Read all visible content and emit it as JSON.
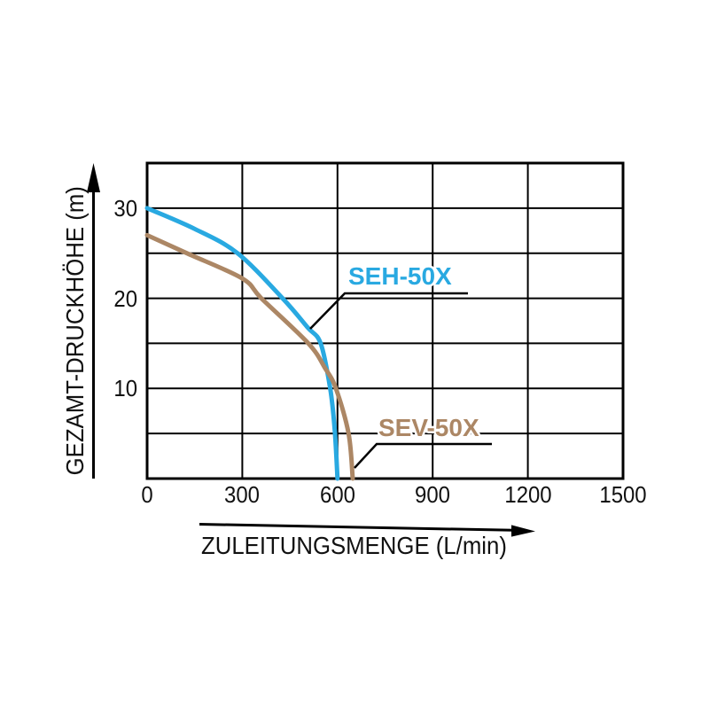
{
  "chart_data": {
    "type": "line",
    "title": "",
    "xlabel": "ZULEITUNGSMENGE (L/min)",
    "ylabel": "GEZAMT-DRUCKHÖHE (m)",
    "xlim": [
      0,
      1500
    ],
    "ylim": [
      0,
      35
    ],
    "x_ticks": [
      "0",
      "300",
      "600",
      "900",
      "1200",
      "1500"
    ],
    "y_ticks": [
      "10",
      "20",
      "30"
    ],
    "grid": "on",
    "grid_x_step": 300,
    "grid_y_step": 5,
    "axis_color": "#000000",
    "legend_position": "inline-annotations",
    "series": [
      {
        "name": "SEH-50X",
        "color": "#29a9e1",
        "points": [
          [
            0,
            30
          ],
          [
            150,
            27.7
          ],
          [
            285,
            25
          ],
          [
            427,
            20
          ],
          [
            505,
            16.8
          ],
          [
            547,
            15
          ],
          [
            577,
            10
          ],
          [
            591,
            5.5
          ],
          [
            600,
            0
          ]
        ]
      },
      {
        "name": "SEV-50X",
        "color": "#ac8765",
        "points": [
          [
            0,
            27
          ],
          [
            125,
            25
          ],
          [
            300,
            22.2
          ],
          [
            360,
            20
          ],
          [
            508,
            15
          ],
          [
            560,
            12.3
          ],
          [
            595,
            10
          ],
          [
            635,
            5
          ],
          [
            648,
            0
          ]
        ]
      }
    ]
  }
}
